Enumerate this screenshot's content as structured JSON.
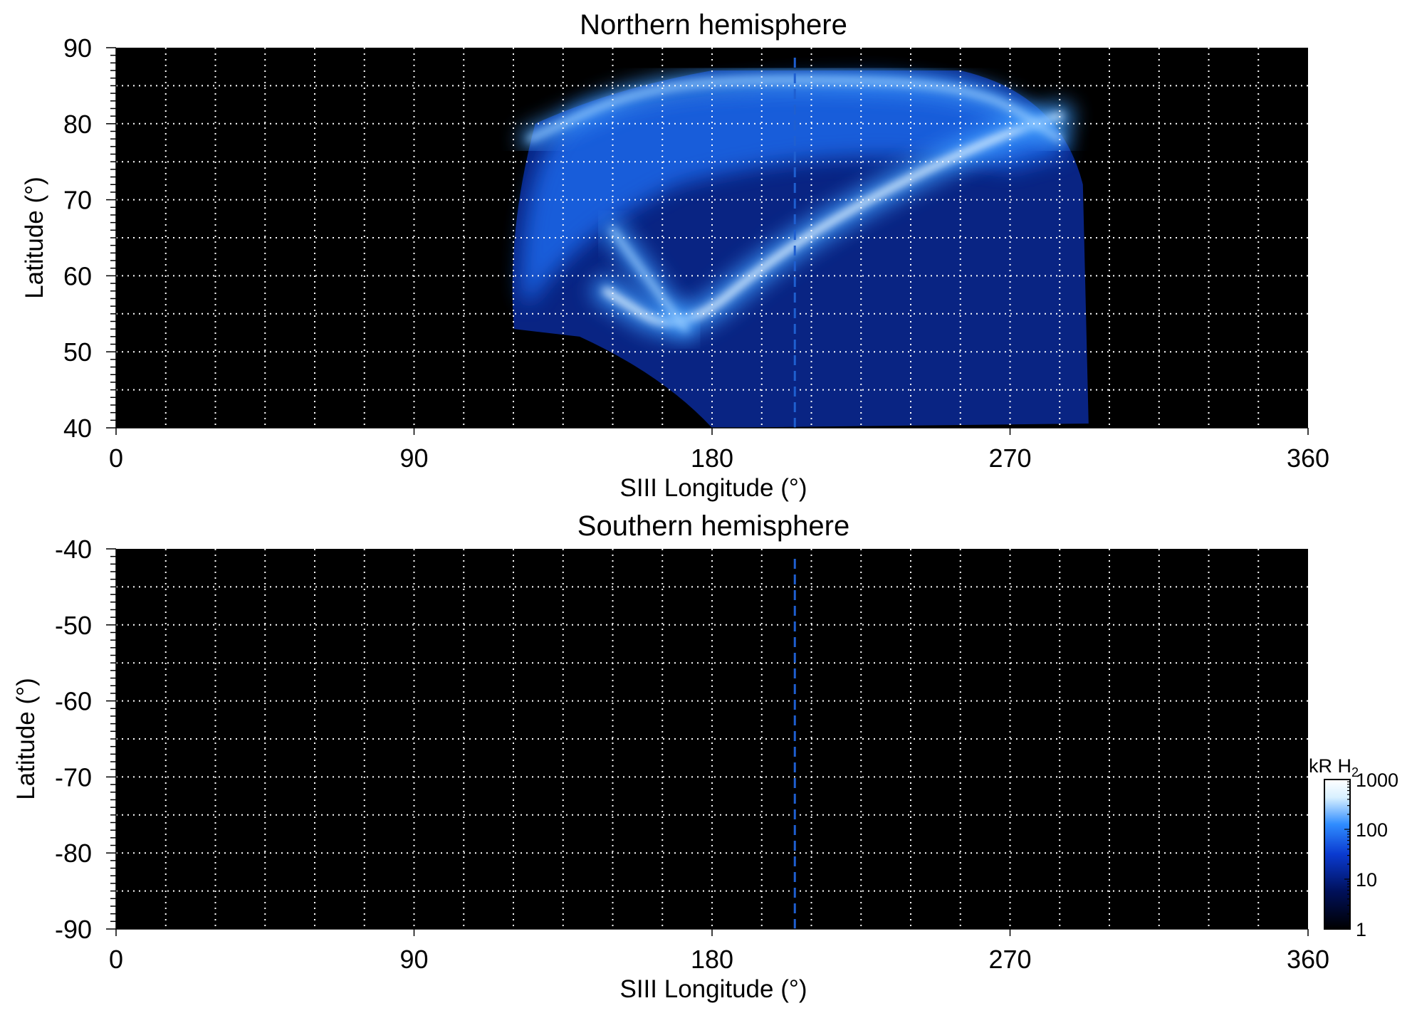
{
  "chart_data": [
    {
      "type": "heatmap",
      "title": "Northern hemisphere",
      "xlabel": "SIII Longitude (°)",
      "ylabel": "Latitude (°)",
      "xlim": [
        0,
        360
      ],
      "ylim": [
        40,
        90
      ],
      "x_ticks": [
        "0",
        "90",
        "180",
        "270",
        "360"
      ],
      "y_ticks": [
        "40",
        "50",
        "60",
        "70",
        "80",
        "90"
      ],
      "x_ticks_values": [
        0,
        90,
        180,
        270,
        360
      ],
      "y_ticks_values": [
        40,
        50,
        60,
        70,
        80,
        90
      ],
      "grid": true,
      "grid_x_step": 15,
      "grid_y_step": 5,
      "background_color": "#000000",
      "reference_line": {
        "x": 205,
        "style": "dashed",
        "color": "#1f5fd0"
      },
      "coverage": {
        "lon_range": [
          118,
          292
        ],
        "lat_range": [
          40,
          87
        ]
      },
      "features": [
        {
          "name": "main emission arc",
          "points": [
            [
              148,
              58
            ],
            [
              170,
              52
            ],
            [
              200,
              63
            ],
            [
              235,
              72
            ],
            [
              270,
              79
            ],
            [
              285,
              81
            ]
          ],
          "intensity_kR": 1000
        },
        {
          "name": "secondary arc",
          "points": [
            [
              150,
              66
            ],
            [
              160,
              60
            ],
            [
              172,
              53
            ]
          ],
          "intensity_kR": 600
        },
        {
          "name": "high latitude band",
          "points": [
            [
              125,
              78
            ],
            [
              160,
              85
            ],
            [
              205,
              86
            ],
            [
              260,
              85
            ],
            [
              285,
              78
            ]
          ],
          "intensity_kR": 300
        }
      ]
    },
    {
      "type": "heatmap",
      "title": "Southern hemisphere",
      "xlabel": "SIII Longitude (°)",
      "ylabel": "Latitude (°)",
      "xlim": [
        0,
        360
      ],
      "ylim": [
        -90,
        -40
      ],
      "x_ticks": [
        "0",
        "90",
        "180",
        "270",
        "360"
      ],
      "y_ticks": [
        "-40",
        "-50",
        "-60",
        "-70",
        "-80",
        "-90"
      ],
      "x_ticks_values": [
        0,
        90,
        180,
        270,
        360
      ],
      "y_ticks_values": [
        -40,
        -50,
        -60,
        -70,
        -80,
        -90
      ],
      "grid": true,
      "grid_x_step": 15,
      "grid_y_step": 5,
      "background_color": "#000000",
      "reference_line": {
        "x": 205,
        "style": "dashed",
        "color": "#1f5fd0"
      },
      "coverage": null,
      "features": []
    }
  ],
  "colorbar": {
    "label": "kR H",
    "label_subscript": "2",
    "scale": "log",
    "range": [
      1,
      1000
    ],
    "ticks": [
      "1",
      "10",
      "100",
      "1000"
    ],
    "colors": [
      "#000000",
      "#00105a",
      "#0a3ad0",
      "#2f8cff",
      "#d8f0ff",
      "#ffffff"
    ]
  }
}
